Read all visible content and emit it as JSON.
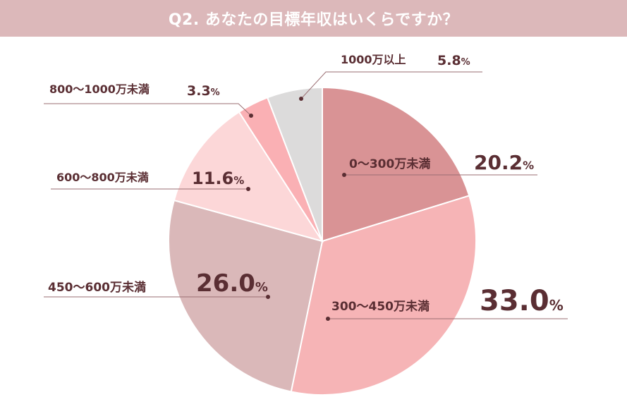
{
  "title": "Q2. あなたの目標年収はいくらですか？",
  "colors": {
    "title_bg": "#dcb8ba",
    "label_text": "#5a2e33",
    "leader_line": "#9a6e72"
  },
  "chart_data": {
    "type": "pie",
    "title": "Q2. あなたの目標年収はいくらですか？",
    "unit": "%",
    "categories": [
      "0〜300万未満",
      "300〜450万未満",
      "450〜600万未満",
      "600〜800万未満",
      "800〜1000万未満",
      "1000万以上"
    ],
    "values": [
      20.2,
      33.0,
      26.0,
      11.6,
      3.3,
      5.8
    ],
    "value_labels": [
      "20.2",
      "33.0",
      "26.0",
      "11.6",
      "3.3",
      "5.8"
    ],
    "colors": [
      "#d99395",
      "#f6b4b6",
      "#dab8b9",
      "#fcd7d8",
      "#fab0b4",
      "#dcdbdb"
    ]
  }
}
